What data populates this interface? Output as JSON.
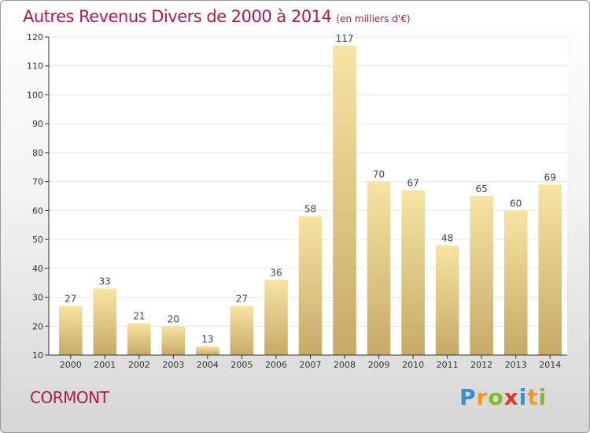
{
  "header": {
    "title": "Autres Revenus Divers de 2000 à 2014",
    "subtitle": "(en milliers d'€)"
  },
  "footer": {
    "commune": "CORMONT",
    "logo_letters": [
      "P",
      "r",
      "o",
      "x",
      "i",
      "t",
      "i"
    ]
  },
  "colors": {
    "title": "#b0194a",
    "bar_light": "#f6e3a1",
    "bar_dark": "#c9ad6a",
    "grid": "#e6e6e6"
  },
  "chart_data": {
    "type": "bar",
    "categories": [
      "2000",
      "2001",
      "2002",
      "2003",
      "2004",
      "2005",
      "2006",
      "2007",
      "2008",
      "2009",
      "2010",
      "2011",
      "2012",
      "2013",
      "2014"
    ],
    "values": [
      27,
      33,
      21,
      20,
      13,
      27,
      36,
      58,
      117,
      70,
      67,
      48,
      65,
      60,
      69
    ],
    "ylim": [
      10,
      120
    ],
    "yticks": [
      10,
      20,
      30,
      40,
      50,
      60,
      70,
      80,
      90,
      100,
      110,
      120
    ],
    "grid": true,
    "data_labels": true
  }
}
